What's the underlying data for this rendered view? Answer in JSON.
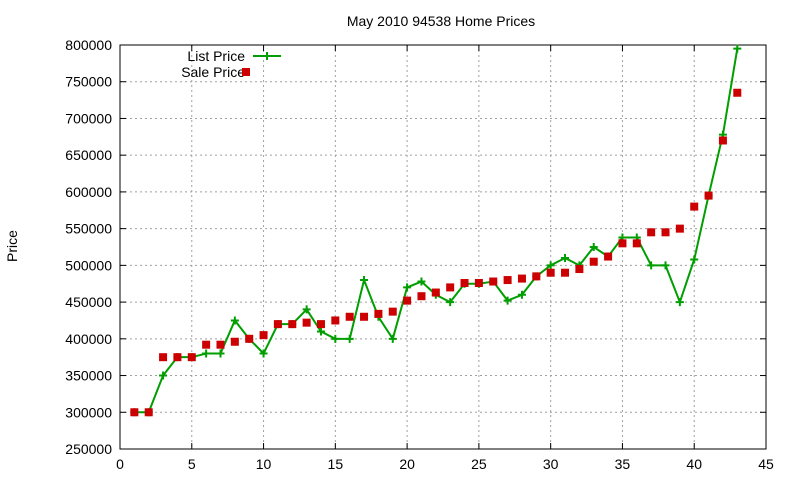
{
  "chart_data": {
    "type": "line",
    "title": "May 2010 94538 Home Prices",
    "xlabel": "",
    "ylabel": "Price",
    "xlim": [
      0,
      45
    ],
    "ylim": [
      250000,
      800000
    ],
    "xticks": [
      0,
      5,
      10,
      15,
      20,
      25,
      30,
      35,
      40,
      45
    ],
    "yticks": [
      250000,
      300000,
      350000,
      400000,
      450000,
      500000,
      550000,
      600000,
      650000,
      700000,
      750000,
      800000
    ],
    "grid": true,
    "legend_position": "top-left",
    "series": [
      {
        "name": "List Price",
        "style": "line-points",
        "marker": "plus",
        "color": "#009e00",
        "x": [
          1,
          2,
          3,
          4,
          5,
          6,
          7,
          8,
          9,
          10,
          11,
          12,
          13,
          14,
          15,
          16,
          17,
          18,
          19,
          20,
          21,
          22,
          23,
          24,
          25,
          26,
          27,
          28,
          29,
          30,
          31,
          32,
          33,
          34,
          35,
          36,
          37,
          38,
          39,
          40,
          41,
          42,
          43
        ],
        "y": [
          300000,
          300000,
          350000,
          375000,
          375000,
          380000,
          380000,
          425000,
          400000,
          380000,
          420000,
          420000,
          440000,
          410000,
          400000,
          400000,
          480000,
          430000,
          400000,
          470000,
          478000,
          460000,
          450000,
          475000,
          475000,
          478000,
          452000,
          460000,
          485000,
          500000,
          510000,
          500000,
          525000,
          512000,
          538000,
          538000,
          500000,
          500000,
          450000,
          508000,
          595000,
          678000,
          795000
        ]
      },
      {
        "name": "Sale Price",
        "style": "points",
        "marker": "square",
        "color": "#cc0000",
        "x": [
          1,
          2,
          3,
          4,
          5,
          6,
          7,
          8,
          9,
          10,
          11,
          12,
          13,
          14,
          15,
          16,
          17,
          18,
          19,
          20,
          21,
          22,
          23,
          24,
          25,
          26,
          27,
          28,
          29,
          30,
          31,
          32,
          33,
          34,
          35,
          36,
          37,
          38,
          39,
          40,
          41,
          42,
          43
        ],
        "y": [
          300000,
          300000,
          375000,
          375000,
          375000,
          392000,
          392000,
          396000,
          400000,
          405000,
          420000,
          420000,
          422000,
          420000,
          425000,
          430000,
          430000,
          434000,
          437000,
          452000,
          458000,
          463000,
          470000,
          476000,
          476000,
          478000,
          480000,
          482000,
          485000,
          490000,
          490000,
          495000,
          505000,
          512000,
          530000,
          530000,
          545000,
          545000,
          550000,
          580000,
          595000,
          670000,
          735000
        ]
      }
    ]
  }
}
